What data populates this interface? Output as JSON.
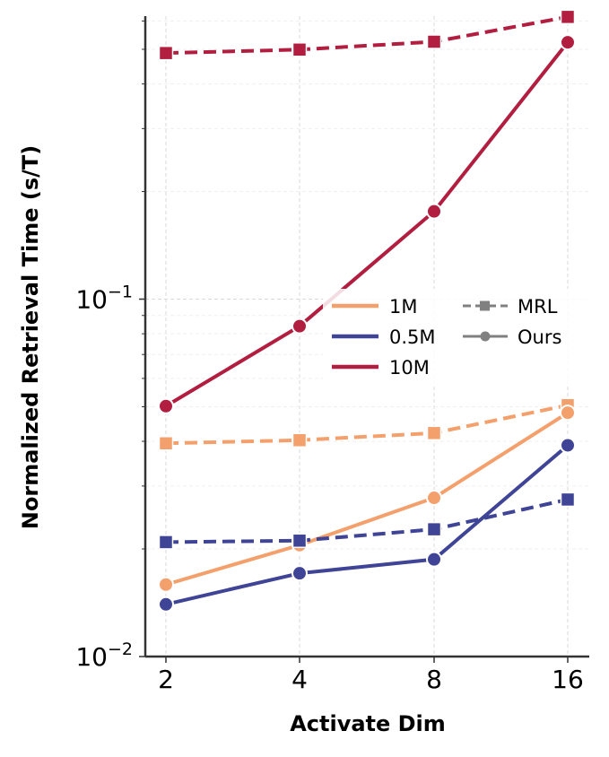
{
  "chart_data": {
    "type": "line",
    "xlabel": "Activate Dim",
    "ylabel": "Normalized Retrieval Time (s/T)",
    "y_scale": "log",
    "ylim": [
      0.01,
      0.72
    ],
    "x_scale": "log2",
    "x": [
      2,
      4,
      8,
      16
    ],
    "x_tick_labels": [
      "2",
      "4",
      "8",
      "16"
    ],
    "y_ticks": [
      {
        "value": 0.1,
        "base": "10",
        "exp": "−1"
      },
      {
        "value": 0.01,
        "base": "10",
        "exp": "−2"
      }
    ],
    "grid": true,
    "legend_placement": "center-right",
    "series": [
      {
        "size": "1M",
        "method": "MRL",
        "color": "#f4a06c",
        "values": [
          0.0395,
          0.0403,
          0.0422,
          0.0505
        ]
      },
      {
        "size": "1M",
        "method": "Ours",
        "color": "#f4a06c",
        "values": [
          0.0159,
          0.0205,
          0.0278,
          0.0481
        ]
      },
      {
        "size": "0.5M",
        "method": "MRL",
        "color": "#3f4496",
        "values": [
          0.0209,
          0.0211,
          0.0227,
          0.0275
        ]
      },
      {
        "size": "0.5M",
        "method": "Ours",
        "color": "#3f4496",
        "values": [
          0.014,
          0.0171,
          0.0187,
          0.039
        ]
      },
      {
        "size": "10M",
        "method": "MRL",
        "color": "#b11e3f",
        "values": [
          0.488,
          0.499,
          0.525,
          0.616
        ]
      },
      {
        "size": "10M",
        "method": "Ours",
        "color": "#b11e3f",
        "values": [
          0.0502,
          0.084,
          0.176,
          0.523
        ]
      }
    ],
    "legend": {
      "sizes": [
        {
          "label": "1M",
          "color": "#f4a06c"
        },
        {
          "label": "0.5M",
          "color": "#3f4496"
        },
        {
          "label": "10M",
          "color": "#b11e3f"
        }
      ],
      "methods": [
        {
          "label": "MRL",
          "style": "dashed-square"
        },
        {
          "label": "Ours",
          "style": "solid-circle"
        }
      ]
    }
  }
}
